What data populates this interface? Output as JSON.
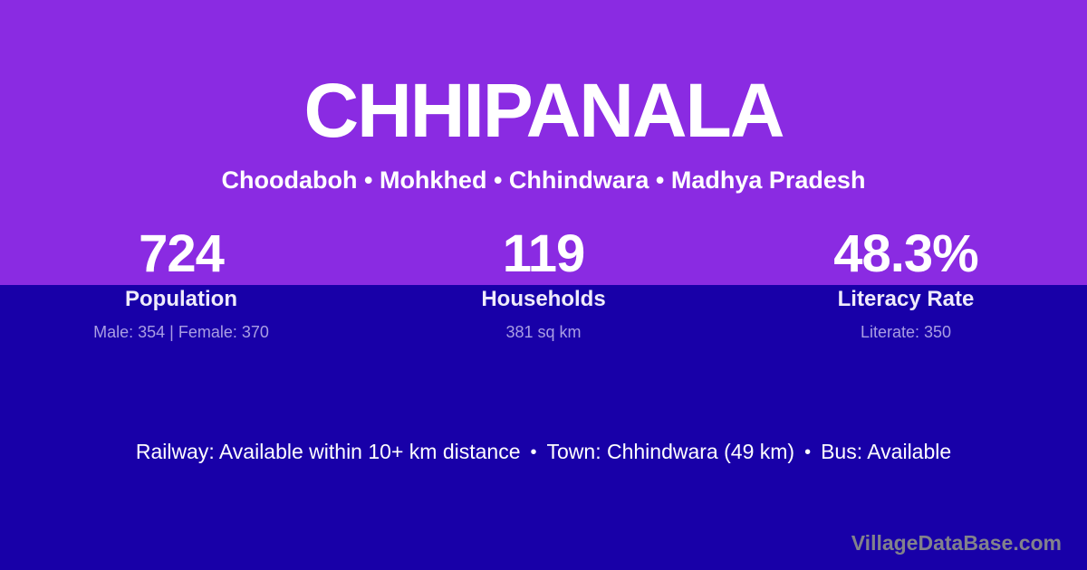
{
  "page": {
    "title": "CHHIPANALA",
    "subtitle": "Choodaboh • Mohkhed • Chhindwara • Madhya Pradesh"
  },
  "stats": [
    {
      "value": "724",
      "label": "Population",
      "detail": "Male: 354 | Female: 370"
    },
    {
      "value": "119",
      "label": "Households",
      "detail": "381 sq km"
    },
    {
      "value": "48.3%",
      "label": "Literacy Rate",
      "detail": "Literate: 350"
    }
  ],
  "info": {
    "bullet": "•",
    "items": [
      "Railway: Available within 10+ km distance",
      "Town: Chhindwara (49 km)",
      "Bus: Available"
    ]
  },
  "watermark": "VillageDataBase.com",
  "colors": {
    "top_background": "#8A2BE2",
    "bottom_background": "#1800A8",
    "text_primary": "#FFFFFF",
    "text_label": "#EFEBFA",
    "text_muted": "#A99EE3",
    "watermark": "#82828B"
  }
}
